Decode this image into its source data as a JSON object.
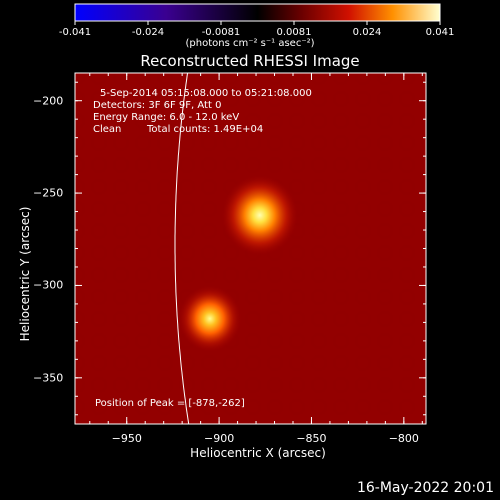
{
  "colorbar": {
    "ticks": [
      "-0.041",
      "-0.024",
      "-0.0081",
      "0.0081",
      "0.024",
      "0.041"
    ],
    "units_label": "(photons cm⁻² s⁻¹ asec⁻²)"
  },
  "chart_data": {
    "type": "heatmap",
    "title": "Reconstructed RHESSI Image",
    "xlabel": "Heliocentric X (arcsec)",
    "ylabel": "Heliocentric Y (arcsec)",
    "xlim": [
      -978,
      -788
    ],
    "ylim": [
      -375,
      -185
    ],
    "x_ticks": [
      "−950",
      "−900",
      "−850",
      "−800"
    ],
    "x_tick_values": [
      -950,
      -900,
      -850,
      -800
    ],
    "y_ticks": [
      "−200",
      "−250",
      "−300",
      "−350"
    ],
    "y_tick_values": [
      -200,
      -250,
      -300,
      -350
    ],
    "sources": [
      {
        "x": -878,
        "y": -262,
        "peak": 1.0
      },
      {
        "x": -905,
        "y": -318,
        "peak": 0.78
      }
    ],
    "annotations": {
      "time": "5-Sep-2014 05:15:08.000 to 05:21:08.000",
      "detectors": "Detectors: 3F 6F 9F, Att 0",
      "energy": "Energy Range: 6.0 - 12.0 keV",
      "method": "Clean",
      "counts": "Total counts: 1.49E+04",
      "peak": "Position of Peak = [-878,-262]"
    }
  },
  "timestamp": "16-May-2022 20:01"
}
